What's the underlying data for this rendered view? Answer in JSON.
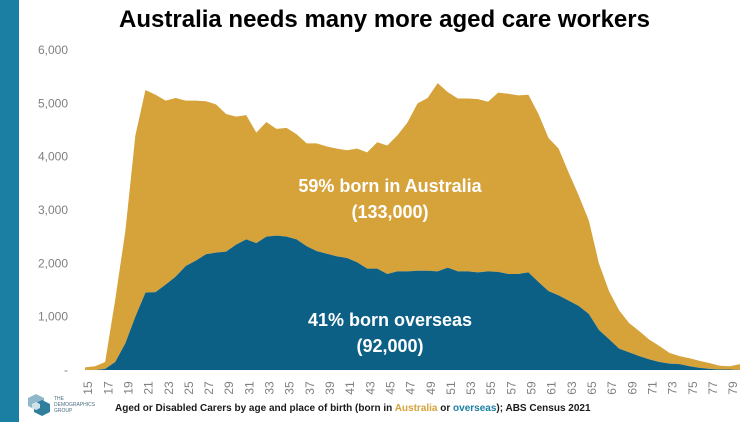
{
  "title": "Australia needs many more aged care workers",
  "caption": {
    "prefix": "Aged or Disabled Carers by age and place of birth (born in ",
    "australia": "Australia",
    "middle": " or ",
    "overseas": "overseas",
    "suffix": "); ABS Census 2021"
  },
  "logo": {
    "text_lines": [
      "THE",
      "DEMOGRAPHICS",
      "GROUP"
    ]
  },
  "colors": {
    "sidebar": "#1b7fa3",
    "australia": "#d6a23a",
    "overseas": "#0c5f85",
    "highlight_australia": "#d6a23a",
    "highlight_overseas": "#1b7fa3"
  },
  "chart_data": {
    "type": "area",
    "stacked": true,
    "x": [
      15,
      16,
      17,
      18,
      19,
      20,
      21,
      22,
      23,
      24,
      25,
      26,
      27,
      28,
      29,
      30,
      31,
      32,
      33,
      34,
      35,
      36,
      37,
      38,
      39,
      40,
      41,
      42,
      43,
      44,
      45,
      46,
      47,
      48,
      49,
      50,
      51,
      52,
      53,
      54,
      55,
      56,
      57,
      58,
      59,
      60,
      61,
      62,
      63,
      64,
      65,
      66,
      67,
      68,
      69,
      70,
      71,
      72,
      73,
      74,
      75,
      76,
      77,
      78,
      79,
      80
    ],
    "xticks": [
      "15",
      "17",
      "19",
      "21",
      "23",
      "25",
      "27",
      "29",
      "31",
      "33",
      "35",
      "37",
      "39",
      "41",
      "43",
      "45",
      "47",
      "49",
      "51",
      "53",
      "55",
      "57",
      "59",
      "61",
      "63",
      "65",
      "67",
      "69",
      "71",
      "73",
      "75",
      "77",
      "79"
    ],
    "yticks": [
      "-",
      "1,000",
      "2,000",
      "3,000",
      "4,000",
      "5,000",
      "6,000"
    ],
    "ylim": [
      0,
      6000
    ],
    "series": [
      {
        "name": "born overseas",
        "values": [
          0,
          0,
          20,
          150,
          500,
          1000,
          1450,
          1460,
          1600,
          1750,
          1950,
          2050,
          2170,
          2200,
          2220,
          2350,
          2450,
          2380,
          2500,
          2520,
          2500,
          2450,
          2320,
          2230,
          2180,
          2130,
          2100,
          2020,
          1900,
          1900,
          1800,
          1850,
          1850,
          1860,
          1860,
          1850,
          1920,
          1850,
          1850,
          1830,
          1850,
          1840,
          1800,
          1800,
          1830,
          1650,
          1480,
          1400,
          1300,
          1200,
          1050,
          750,
          580,
          400,
          330,
          260,
          200,
          150,
          120,
          110,
          70,
          40,
          20,
          10,
          10,
          0
        ]
      },
      {
        "name": "born in Australia",
        "values": [
          50,
          70,
          130,
          1170,
          2100,
          3400,
          3800,
          3700,
          3450,
          3350,
          3100,
          3000,
          2870,
          2780,
          2580,
          2400,
          2330,
          2070,
          2150,
          2000,
          2040,
          1970,
          1930,
          2020,
          2010,
          2020,
          2020,
          2130,
          2180,
          2370,
          2410,
          2550,
          2790,
          3140,
          3240,
          3530,
          3290,
          3240,
          3240,
          3250,
          3180,
          3360,
          3380,
          3350,
          3330,
          3150,
          2870,
          2750,
          2400,
          2070,
          1750,
          1250,
          900,
          720,
          550,
          470,
          370,
          300,
          200,
          150,
          150,
          130,
          110,
          70,
          60,
          110
        ]
      }
    ],
    "annotations": [
      {
        "line1": "59% born in Australia",
        "line2": "(133,000)"
      },
      {
        "line1": "41% born overseas",
        "line2": "(92,000)"
      }
    ],
    "grid": false
  }
}
